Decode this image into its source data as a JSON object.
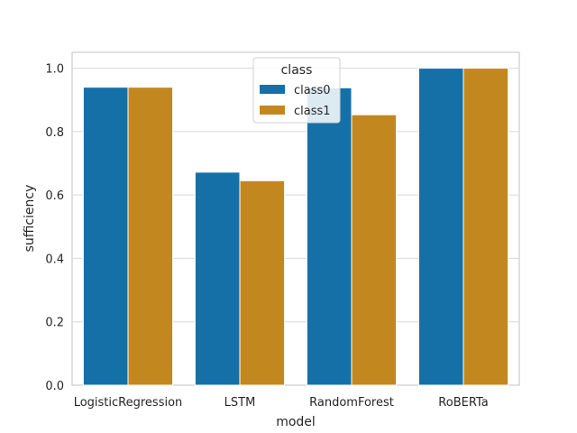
{
  "chart_data": {
    "type": "bar",
    "categories": [
      "LogisticRegression",
      "LSTM",
      "RandomForest",
      "RoBERTa"
    ],
    "series": [
      {
        "name": "class0",
        "values": [
          0.94,
          0.672,
          0.938,
          1.0
        ],
        "color": "#1670a8"
      },
      {
        "name": "class1",
        "values": [
          0.94,
          0.645,
          0.853,
          1.0
        ],
        "color": "#c2881f"
      }
    ],
    "xlabel": "model",
    "ylabel": "sufficiency",
    "ylim": [
      0,
      1.05
    ],
    "yticks": [
      "0.0",
      "0.2",
      "0.4",
      "0.6",
      "0.8",
      "1.0"
    ],
    "grid": true,
    "legend": {
      "title": "class",
      "placement": "upper-center"
    }
  }
}
